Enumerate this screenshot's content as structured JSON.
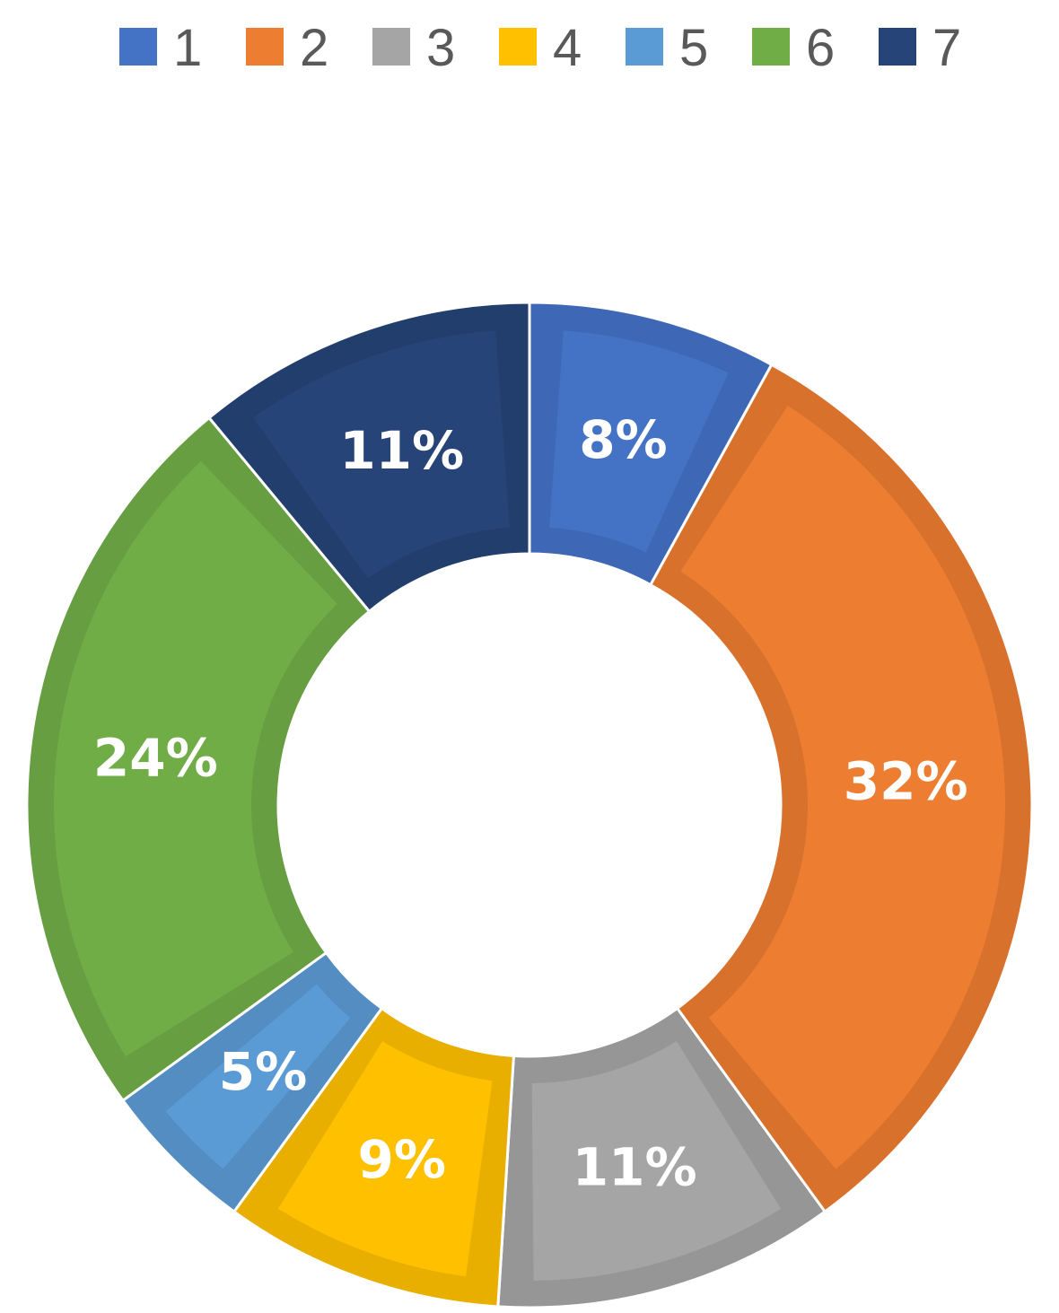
{
  "chart_data": {
    "type": "pie",
    "variant": "donut",
    "start_angle_deg": 0,
    "direction": "clockwise",
    "legend_position": "top",
    "legend": [
      {
        "label": "1",
        "color": "#4472C4"
      },
      {
        "label": "2",
        "color": "#ED7D31"
      },
      {
        "label": "3",
        "color": "#A5A5A5"
      },
      {
        "label": "4",
        "color": "#FFC000"
      },
      {
        "label": "5",
        "color": "#5B9BD5"
      },
      {
        "label": "6",
        "color": "#70AD47"
      },
      {
        "label": "7",
        "color": "#264478"
      }
    ],
    "slices": [
      {
        "label": "1",
        "value": 8,
        "value_label": "8%",
        "color": "#4472C4",
        "border": "#3E68B5"
      },
      {
        "label": "2",
        "value": 32,
        "value_label": "32%",
        "color": "#ED7D31",
        "border": "#D8712C"
      },
      {
        "label": "3",
        "value": 11,
        "value_label": "11%",
        "color": "#A5A5A5",
        "border": "#969696"
      },
      {
        "label": "4",
        "value": 9,
        "value_label": "9%",
        "color": "#FFC000",
        "border": "#E8AF00"
      },
      {
        "label": "5",
        "value": 5,
        "value_label": "5%",
        "color": "#5B9BD5",
        "border": "#538DC2"
      },
      {
        "label": "6",
        "value": 24,
        "value_label": "24%",
        "color": "#70AD47",
        "border": "#669E41"
      },
      {
        "label": "7",
        "value": 11,
        "value_label": "11%",
        "color": "#264478",
        "border": "#223E6D"
      }
    ]
  }
}
